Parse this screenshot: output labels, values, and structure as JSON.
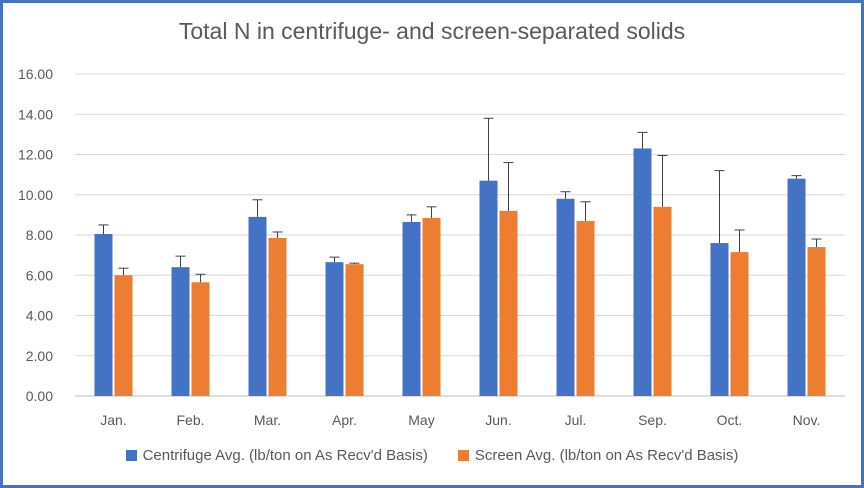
{
  "chart_data": {
    "type": "bar",
    "title": "Total N in centrifuge- and screen-separated solids",
    "categories": [
      "Jan.",
      "Feb.",
      "Mar.",
      "Apr.",
      "May",
      "Jun.",
      "Jul.",
      "Sep.",
      "Oct.",
      "Nov."
    ],
    "ylim": [
      0,
      16
    ],
    "yticks": [
      "0.00",
      "2.00",
      "4.00",
      "6.00",
      "8.00",
      "10.00",
      "12.00",
      "14.00",
      "16.00"
    ],
    "grid": true,
    "legend": "bottom",
    "series": [
      {
        "name": "Centrifuge Avg. (lb/ton on As Recv'd Basis)",
        "color": "#4472c4",
        "values": [
          8.05,
          6.4,
          8.9,
          6.65,
          8.65,
          10.7,
          9.8,
          12.3,
          7.6,
          10.8
        ],
        "error_upper": [
          8.5,
          6.95,
          9.75,
          6.9,
          9.0,
          13.8,
          10.15,
          13.1,
          11.2,
          10.95
        ]
      },
      {
        "name": "Screen Avg. (lb/ton on As Recv'd Basis)",
        "color": "#ed7d31",
        "values": [
          6.0,
          5.65,
          7.85,
          6.55,
          8.85,
          9.2,
          8.7,
          9.4,
          7.15,
          7.4
        ],
        "error_upper": [
          6.35,
          6.05,
          8.15,
          6.6,
          9.4,
          11.6,
          9.65,
          11.95,
          8.25,
          7.8
        ]
      }
    ]
  }
}
